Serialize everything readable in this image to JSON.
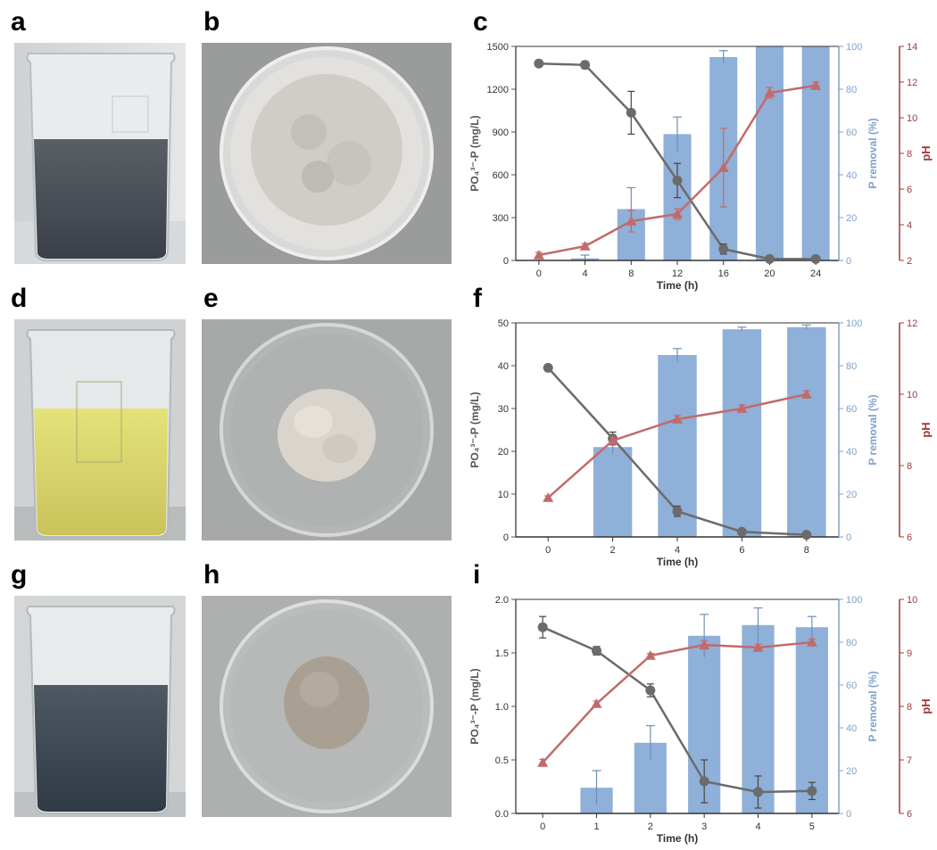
{
  "panels": [
    {
      "letter": "a"
    },
    {
      "letter": "b"
    },
    {
      "letter": "c"
    },
    {
      "letter": "d"
    },
    {
      "letter": "e"
    },
    {
      "letter": "f"
    },
    {
      "letter": "g"
    },
    {
      "letter": "h"
    },
    {
      "letter": "i"
    }
  ],
  "colors": {
    "bar": "#8fb0d8",
    "bar_error": "#6e8fba",
    "phosphate_line": "#6b6b6b",
    "ph_line": "#c26a6a",
    "left_axis": "#555555",
    "right_axis_removal": "#7ea1cc",
    "right_axis_ph": "#9b3b3b"
  },
  "chart_data": [
    {
      "type": "bar+line",
      "panel": "c",
      "xlabel": "Time (h)",
      "ylabel_left": "PO₄³⁻-P (mg/L)",
      "ylabel_right1": "P removal (%)",
      "ylabel_right2": "pH",
      "x": [
        0,
        4,
        8,
        12,
        16,
        20,
        24
      ],
      "xticks": [
        "0",
        "4",
        "8",
        "12",
        "16",
        "20",
        "24"
      ],
      "ylim_left": [
        0,
        1500
      ],
      "yticks_left": [
        "0",
        "300",
        "600",
        "900",
        "1200",
        "1500"
      ],
      "ylim_right1": [
        0,
        100
      ],
      "yticks_right1": [
        "0",
        "20",
        "40",
        "60",
        "80",
        "100"
      ],
      "ylim_right2": [
        2,
        14
      ],
      "yticks_right2": [
        "2",
        "4",
        "6",
        "8",
        "10",
        "12",
        "14"
      ],
      "phosphate": [
        1380,
        1370,
        1035,
        560,
        80,
        10,
        10
      ],
      "phosphate_err": [
        15,
        25,
        150,
        120,
        35,
        8,
        8
      ],
      "removal": [
        0,
        1,
        24,
        59,
        95,
        100,
        100
      ],
      "removal_err": [
        0,
        1.5,
        10,
        8,
        3,
        0,
        0
      ],
      "ph": [
        2.3,
        2.8,
        4.2,
        4.6,
        7.2,
        11.4,
        11.8
      ],
      "ph_err": [
        0.15,
        0.15,
        0.6,
        0.3,
        2.2,
        0.3,
        0.2
      ]
    },
    {
      "type": "bar+line",
      "panel": "f",
      "xlabel": "Time (h)",
      "ylabel_left": "PO₄³⁻-P (mg/L)",
      "ylabel_right1": "P removal (%)",
      "ylabel_right2": "pH",
      "x": [
        0,
        2,
        4,
        6,
        8
      ],
      "xticks": [
        "0",
        "2",
        "4",
        "6",
        "8"
      ],
      "ylim_left": [
        0,
        50
      ],
      "yticks_left": [
        "0",
        "10",
        "20",
        "30",
        "40",
        "50"
      ],
      "ylim_right1": [
        0,
        100
      ],
      "yticks_right1": [
        "0",
        "20",
        "40",
        "60",
        "80",
        "100"
      ],
      "ylim_right2": [
        6,
        12
      ],
      "yticks_right2": [
        "6",
        "8",
        "10",
        "12"
      ],
      "phosphate": [
        39.5,
        23,
        6,
        1.2,
        0.5
      ],
      "phosphate_err": [
        0.4,
        1.5,
        1.2,
        0.3,
        0.2
      ],
      "removal": [
        0,
        42,
        85,
        97,
        98
      ],
      "removal_err": [
        0,
        3,
        3,
        1,
        1
      ],
      "ph": [
        7.1,
        8.7,
        9.3,
        9.6,
        10.0
      ],
      "ph_err": [
        0.05,
        0.1,
        0.1,
        0.1,
        0.1
      ]
    },
    {
      "type": "bar+line",
      "panel": "i",
      "xlabel": "Time (h)",
      "ylabel_left": "PO₄³⁻-P (mg/L)",
      "ylabel_right1": "P removal (%)",
      "ylabel_right2": "pH",
      "x": [
        0,
        1,
        2,
        3,
        4,
        5
      ],
      "xticks": [
        "0",
        "1",
        "2",
        "3",
        "4",
        "5"
      ],
      "ylim_left": [
        0,
        2.0
      ],
      "yticks_left": [
        "0.0",
        "0.5",
        "1.0",
        "1.5",
        "2.0"
      ],
      "ylim_right1": [
        0,
        100
      ],
      "yticks_right1": [
        "0",
        "20",
        "40",
        "60",
        "80",
        "100"
      ],
      "ylim_right2": [
        6,
        10
      ],
      "yticks_right2": [
        "6",
        "7",
        "8",
        "9",
        "10"
      ],
      "phosphate": [
        1.74,
        1.52,
        1.15,
        0.3,
        0.2,
        0.21
      ],
      "phosphate_err": [
        0.1,
        0.04,
        0.06,
        0.2,
        0.15,
        0.08
      ],
      "removal": [
        0,
        12,
        33,
        83,
        88,
        87
      ],
      "removal_err": [
        0,
        8,
        8,
        10,
        8,
        5
      ],
      "ph": [
        6.95,
        8.05,
        8.95,
        9.15,
        9.1,
        9.2
      ],
      "ph_err": [
        0.06,
        0.05,
        0.04,
        0.08,
        0.06,
        0.06
      ]
    }
  ]
}
